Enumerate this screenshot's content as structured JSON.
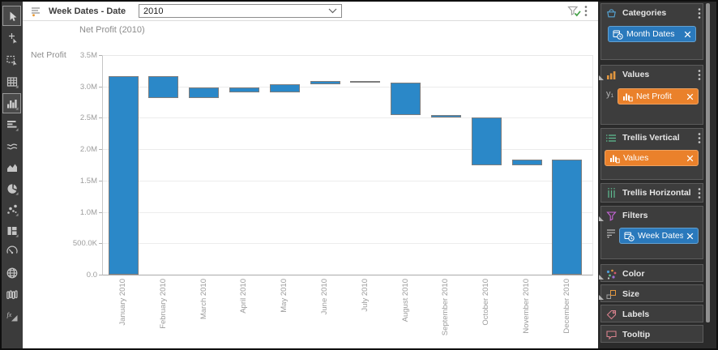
{
  "topbar": {
    "filter_field_label": "Week Dates - Date",
    "dropdown_value": "2010"
  },
  "toolbar": {
    "items": [
      {
        "name": "select-tool",
        "icon": "pointer-icon",
        "selected": true
      },
      {
        "name": "move-tool",
        "icon": "move-pointer-icon",
        "selected": false
      },
      {
        "name": "lasso-select-tool",
        "icon": "lasso-select-icon",
        "selected": false
      },
      {
        "name": "table-visual",
        "icon": "table-icon",
        "selected": false
      },
      {
        "name": "bar-chart-visual",
        "icon": "bar-chart-icon",
        "selected": true
      },
      {
        "name": "row-chart-visual",
        "icon": "row-chart-icon",
        "selected": false
      },
      {
        "name": "line-chart-visual",
        "icon": "line-chart-icon",
        "selected": false
      },
      {
        "name": "area-chart-visual",
        "icon": "area-chart-icon",
        "selected": false
      },
      {
        "name": "pie-chart-visual",
        "icon": "pie-chart-icon",
        "selected": false
      },
      {
        "name": "scatter-plot-visual",
        "icon": "scatter-icon",
        "selected": false
      },
      {
        "name": "treemap-visual",
        "icon": "treemap-icon",
        "selected": false
      },
      {
        "name": "gauge-visual",
        "icon": "gauge-icon",
        "selected": false
      },
      {
        "name": "map-visual",
        "icon": "map-icon",
        "selected": false
      },
      {
        "name": "parallel-coordinates-visual",
        "icon": "parallel-icon",
        "selected": false
      },
      {
        "name": "function-chart-visual",
        "icon": "fx-icon",
        "selected": false
      }
    ]
  },
  "chart_data": {
    "type": "bar",
    "subtype": "waterfall",
    "title": "Net Profit (2010)",
    "y_axis_title": "Net Profit",
    "ylim": [
      0,
      3500000
    ],
    "bar_color": "#2b88c8",
    "grid": "horizontal",
    "x_tick_rotation": 90,
    "yticks": [
      {
        "label": "0.0",
        "value": 0
      },
      {
        "label": "500.0K",
        "value": 500000
      },
      {
        "label": "1.0M",
        "value": 1000000
      },
      {
        "label": "1.5M",
        "value": 1500000
      },
      {
        "label": "2.0M",
        "value": 2000000
      },
      {
        "label": "2.5M",
        "value": 2500000
      },
      {
        "label": "3.0M",
        "value": 3000000
      },
      {
        "label": "3.5M",
        "value": 3500000
      }
    ],
    "categories": [
      "January 2010",
      "February 2010",
      "March 2010",
      "April 2010",
      "May 2010",
      "June 2010",
      "July 2010",
      "August 2010",
      "September 2010",
      "October 2010",
      "November 2010",
      "December 2010"
    ],
    "bars": [
      {
        "month": "January 2010",
        "start": 0,
        "end": 3170000
      },
      {
        "month": "February 2010",
        "start": 3170000,
        "end": 2810000
      },
      {
        "month": "March 2010",
        "start": 2810000,
        "end": 2980000
      },
      {
        "month": "April 2010",
        "start": 2980000,
        "end": 2910000
      },
      {
        "month": "May 2010",
        "start": 2910000,
        "end": 3040000
      },
      {
        "month": "June 2010",
        "start": 3040000,
        "end": 3090000
      },
      {
        "month": "July 2010",
        "start": 3090000,
        "end": 3060000
      },
      {
        "month": "August 2010",
        "start": 3060000,
        "end": 2550000
      },
      {
        "month": "September 2010",
        "start": 2550000,
        "end": 2510000
      },
      {
        "month": "October 2010",
        "start": 2510000,
        "end": 1740000
      },
      {
        "month": "November 2010",
        "start": 1740000,
        "end": 1830000
      },
      {
        "month": "December 2010",
        "start": 0,
        "end": 1830000
      }
    ]
  },
  "panel": {
    "colors": {
      "pill_blue": "#2a79bc",
      "pill_orange": "#ea812b"
    },
    "sections": [
      {
        "id": "categories",
        "title": "Categories",
        "icon": "basket-icon",
        "kebab": true,
        "pills": [
          {
            "label": "Month Dates",
            "color": "blue",
            "icon": "datetime-icon"
          }
        ]
      },
      {
        "id": "values",
        "title": "Values",
        "icon": "measure-bars-icon",
        "kebab": true,
        "prefix": "y₁",
        "expander": true,
        "pills": [
          {
            "label": "Net Profit",
            "color": "orange",
            "icon": "measure-icon"
          }
        ]
      },
      {
        "id": "trellis-vertical",
        "title": "Trellis Vertical",
        "icon": "trellis-vertical-icon",
        "kebab": true,
        "pills": [
          {
            "label": "Values",
            "color": "orange",
            "icon": "measure-icon"
          }
        ]
      },
      {
        "id": "trellis-horizontal",
        "title": "Trellis Horizontal",
        "icon": "trellis-horizontal-icon",
        "kebab": true,
        "pills": []
      },
      {
        "id": "filters",
        "title": "Filters",
        "icon": "funnel-icon",
        "kebab": false,
        "hamburger": true,
        "expander": true,
        "pills": [
          {
            "label": "Week Dates",
            "color": "blue",
            "icon": "datetime-icon"
          }
        ]
      },
      {
        "id": "color",
        "title": "Color",
        "icon": "color-icon",
        "kebab": false,
        "expander": true,
        "pills": []
      },
      {
        "id": "size",
        "title": "Size",
        "icon": "size-icon",
        "kebab": false,
        "expander": true,
        "pills": []
      },
      {
        "id": "labels",
        "title": "Labels",
        "icon": "tag-icon",
        "kebab": false,
        "pills": []
      },
      {
        "id": "tooltip",
        "title": "Tooltip",
        "icon": "tooltip-icon",
        "kebab": false,
        "pills": []
      }
    ]
  }
}
